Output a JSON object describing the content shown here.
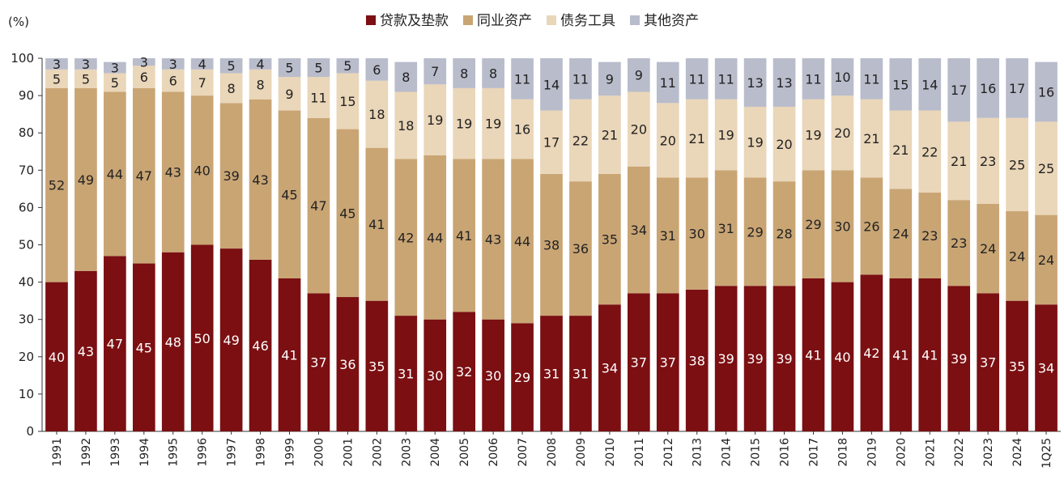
{
  "chart_data": {
    "type": "bar",
    "stacked": true,
    "ylabel": "(%)",
    "ylim": [
      0,
      100
    ],
    "yticks": [
      0,
      10,
      20,
      30,
      40,
      50,
      60,
      70,
      80,
      90,
      100
    ],
    "legend_position": "top-center",
    "categories": [
      "1991",
      "1992",
      "1993",
      "1994",
      "1995",
      "1996",
      "1997",
      "1998",
      "1999",
      "2000",
      "2001",
      "2002",
      "2003",
      "2004",
      "2005",
      "2006",
      "2007",
      "2008",
      "2009",
      "2010",
      "2011",
      "2012",
      "2013",
      "2014",
      "2015",
      "2016",
      "2017",
      "2018",
      "2019",
      "2020",
      "2021",
      "2022",
      "2023",
      "2024",
      "1Q25"
    ],
    "series": [
      {
        "name": "贷款及垫款",
        "color": "#7b0f12",
        "label_color": "#ffffff",
        "values": [
          40,
          43,
          47,
          45,
          48,
          50,
          49,
          46,
          41,
          37,
          36,
          35,
          31,
          30,
          32,
          30,
          29,
          31,
          31,
          34,
          37,
          37,
          38,
          39,
          39,
          39,
          41,
          40,
          42,
          41,
          41,
          39,
          37,
          35,
          34
        ]
      },
      {
        "name": "同业资产",
        "color": "#c9a574",
        "label_color": "#222222",
        "values": [
          52,
          49,
          44,
          47,
          43,
          40,
          39,
          43,
          45,
          47,
          45,
          41,
          42,
          44,
          41,
          43,
          44,
          38,
          36,
          35,
          34,
          31,
          30,
          31,
          29,
          28,
          29,
          30,
          26,
          24,
          23,
          23,
          24,
          24,
          24
        ]
      },
      {
        "name": "债务工具",
        "color": "#ead6b8",
        "label_color": "#222222",
        "values": [
          5,
          5,
          5,
          6,
          6,
          7,
          8,
          8,
          9,
          11,
          15,
          18,
          18,
          19,
          19,
          19,
          16,
          17,
          22,
          21,
          20,
          20,
          21,
          19,
          19,
          20,
          19,
          20,
          21,
          21,
          22,
          21,
          23,
          25,
          25
        ]
      },
      {
        "name": "其他资产",
        "color": "#b9bccb",
        "label_color": "#222222",
        "values": [
          3,
          3,
          3,
          3,
          3,
          4,
          5,
          4,
          5,
          5,
          5,
          6,
          8,
          7,
          8,
          8,
          11,
          14,
          11,
          9,
          9,
          11,
          11,
          11,
          13,
          13,
          11,
          10,
          11,
          15,
          14,
          17,
          16,
          17,
          16
        ]
      }
    ]
  }
}
